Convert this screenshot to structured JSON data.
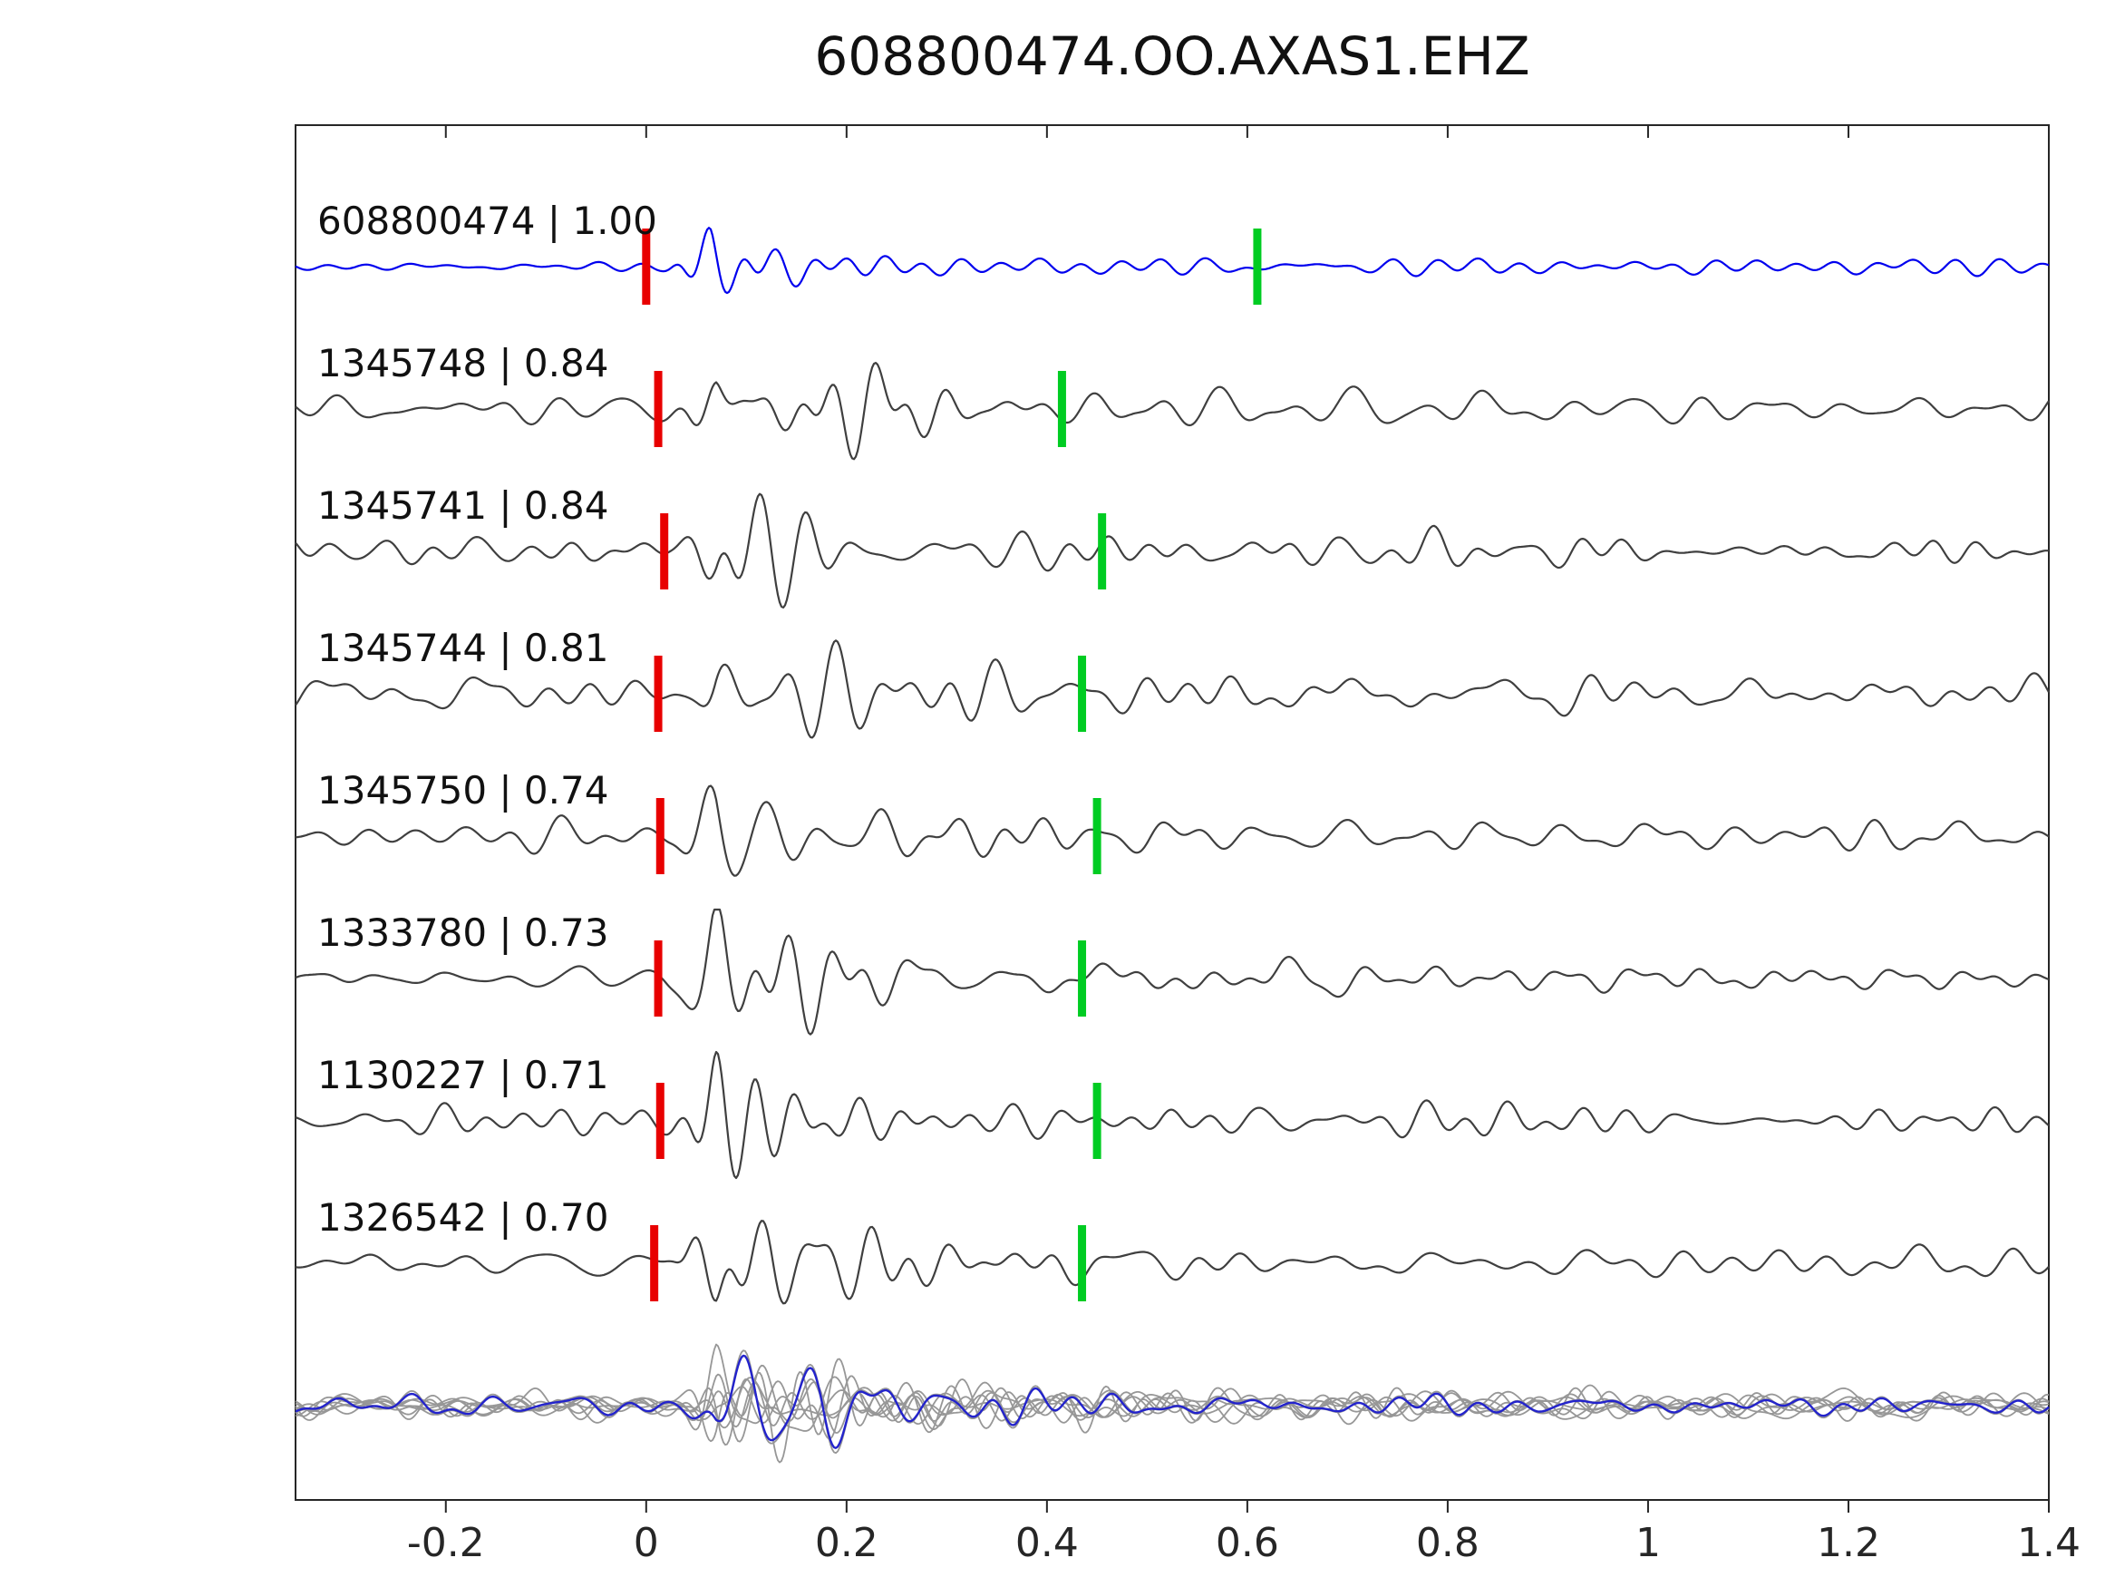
{
  "title": "608800474.OO.AXAS1.EHZ",
  "colors": {
    "template_trace": "#0000ee",
    "gray_trace": "#3f3f3f",
    "stack_gray": "#979797",
    "stack_blue": "#2323cc",
    "pick_red": "#e80000",
    "pick_green": "#00cc22",
    "axis": "#262626",
    "label_text": "#111111"
  },
  "chart_data": {
    "type": "line",
    "title": "608800474.OO.AXAS1.EHZ",
    "xlabel": "",
    "ylabel": "",
    "grid": false,
    "legend": null,
    "xlim": [
      -0.35,
      1.4
    ],
    "xticks": [
      {
        "value": -0.2,
        "label": "-0.2"
      },
      {
        "value": 0,
        "label": "0"
      },
      {
        "value": 0.2,
        "label": "0.2"
      },
      {
        "value": 0.4,
        "label": "0.4"
      },
      {
        "value": 0.6,
        "label": "0.6"
      },
      {
        "value": 0.8,
        "label": "0.8"
      },
      {
        "value": 1,
        "label": "1"
      },
      {
        "value": 1.2,
        "label": "1.2"
      },
      {
        "value": 1.4,
        "label": "1.4"
      }
    ],
    "traces": [
      {
        "id": "608800474",
        "similarity": "1.00",
        "label": "608800474 | 1.00",
        "kind": "template",
        "red_pick": 0.0,
        "green_pick": 0.61,
        "synth": {
          "seed": 3,
          "pre": 3.5,
          "burst": 50,
          "tail": 8,
          "tau": 0.1,
          "onset": 0.015
        }
      },
      {
        "id": "1345748",
        "similarity": "0.84",
        "label": "1345748 | 0.84",
        "kind": "match",
        "red_pick": 0.012,
        "green_pick": 0.415,
        "synth": {
          "seed": 11,
          "pre": 13,
          "burst": 66,
          "tail": 17,
          "tau": 0.16,
          "onset": 0.02
        }
      },
      {
        "id": "1345741",
        "similarity": "0.84",
        "label": "1345741 | 0.84",
        "kind": "match",
        "red_pick": 0.018,
        "green_pick": 0.455,
        "synth": {
          "seed": 12,
          "pre": 11,
          "burst": 62,
          "tail": 15,
          "tau": 0.16,
          "onset": 0.02
        }
      },
      {
        "id": "1345744",
        "similarity": "0.81",
        "label": "1345744 | 0.81",
        "kind": "match",
        "red_pick": 0.012,
        "green_pick": 0.435,
        "synth": {
          "seed": 13,
          "pre": 14,
          "burst": 68,
          "tail": 18,
          "tau": 0.17,
          "onset": 0.02
        }
      },
      {
        "id": "1345750",
        "similarity": "0.74",
        "label": "1345750 | 0.74",
        "kind": "match",
        "red_pick": 0.014,
        "green_pick": 0.45,
        "synth": {
          "seed": 14,
          "pre": 12,
          "burst": 64,
          "tail": 17,
          "tau": 0.16,
          "onset": 0.02
        }
      },
      {
        "id": "1333780",
        "similarity": "0.73",
        "label": "1333780 | 0.73",
        "kind": "match",
        "red_pick": 0.012,
        "green_pick": 0.435,
        "synth": {
          "seed": 15,
          "pre": 11,
          "burst": 63,
          "tail": 15,
          "tau": 0.15,
          "onset": 0.02
        }
      },
      {
        "id": "1130227",
        "similarity": "0.71",
        "label": "1130227 | 0.71",
        "kind": "match",
        "red_pick": 0.014,
        "green_pick": 0.45,
        "synth": {
          "seed": 16,
          "pre": 10,
          "burst": 60,
          "tail": 14,
          "tau": 0.15,
          "onset": 0.02
        }
      },
      {
        "id": "1326542",
        "similarity": "0.70",
        "label": "1326542 | 0.70",
        "kind": "match",
        "red_pick": 0.008,
        "green_pick": 0.435,
        "synth": {
          "seed": 17,
          "pre": 11,
          "burst": 65,
          "tail": 15,
          "tau": 0.16,
          "onset": 0.02
        }
      }
    ],
    "stack": {
      "description": "overlay of all aligned traces (gray) with template stack (blue)",
      "gray_count": 8,
      "gray_synth": {
        "seed_start": 41,
        "pre": 10,
        "burst": 46,
        "tail": 13,
        "tau": 0.22,
        "onset": 0.02
      },
      "blue_synth": {
        "seed": 45,
        "pre": 8,
        "burst": 42,
        "tail": 11,
        "tau": 0.22,
        "onset": 0.02
      }
    }
  }
}
